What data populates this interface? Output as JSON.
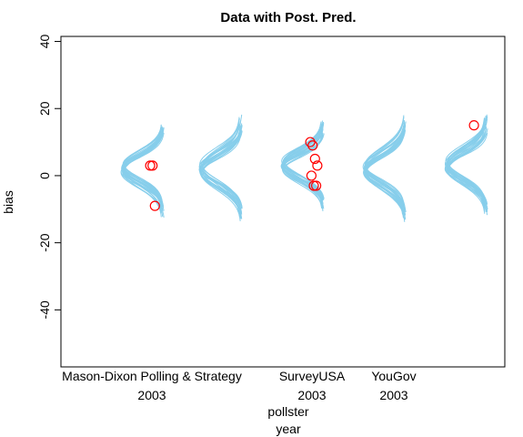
{
  "chart_data": {
    "type": "scatter",
    "title": "Data with Post. Pred.",
    "ylabel": "bias",
    "xlabel_lines": [
      "pollster",
      "year"
    ],
    "ylim": [
      -57,
      41.5
    ],
    "y_ticks": [
      40,
      20,
      0,
      -20,
      -40
    ],
    "y_tick_labels": [
      "40",
      "20",
      "0",
      "-20",
      "-40"
    ],
    "x_group_labels": [
      {
        "line1": "Mason-Dixon Polling & Strategy",
        "line2": "2003",
        "group": 0
      },
      {
        "line1": "SurveyUSA",
        "line2": "2003",
        "group": 2
      },
      {
        "line1": "YouGov",
        "line2": "2003",
        "group": 3
      }
    ],
    "groups": [
      {
        "center": 2.2,
        "spread": 9,
        "points": [
          3,
          3,
          -9
        ]
      },
      {
        "center": 2.0,
        "spread": 10,
        "points": []
      },
      {
        "center": 3.0,
        "spread": 8.5,
        "points": [
          10,
          9,
          5,
          3,
          0,
          -3,
          -3
        ]
      },
      {
        "center": 2.0,
        "spread": 10,
        "points": []
      },
      {
        "center": 3.0,
        "spread": 9.5,
        "points": [
          15
        ]
      }
    ],
    "colors": {
      "posterior": "#87CEEB",
      "data": "#FF0000",
      "axis": "#000000"
    }
  }
}
